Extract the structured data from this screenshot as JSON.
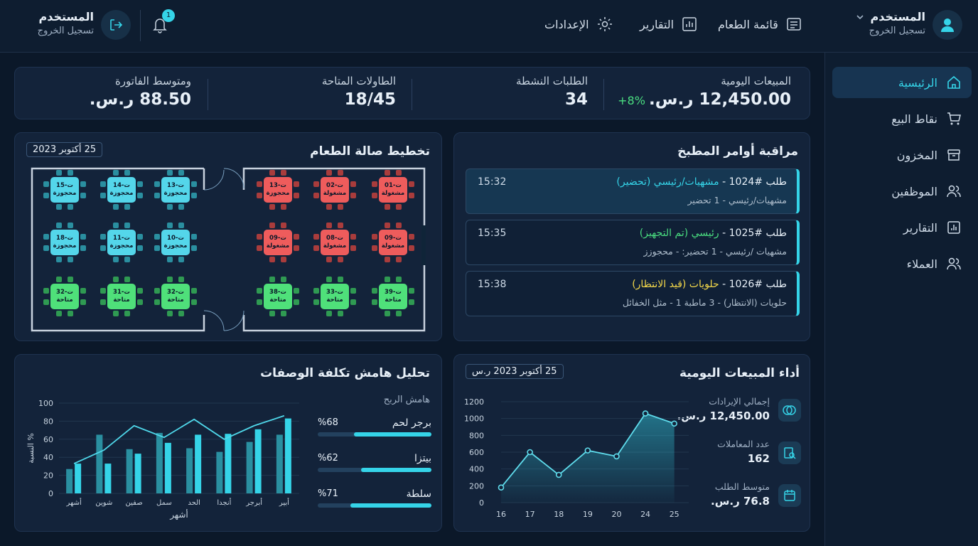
{
  "topbar": {
    "user_name": "المستخدم",
    "user_logout": "تسجيل الخروج",
    "menu_item": "قائمة الطعام",
    "reports_item": "التقارير",
    "settings_item": "الإعدادات",
    "notif_count": "1",
    "left_user_name": "المستخدم",
    "left_user_logout": "تسجيل الخروج"
  },
  "sidebar": {
    "items": [
      {
        "label": "الرئيسية",
        "icon": "home-icon"
      },
      {
        "label": "نقاط البيع",
        "icon": "cart-icon"
      },
      {
        "label": "المخزون",
        "icon": "box-icon"
      },
      {
        "label": "الموظفين",
        "icon": "users-icon"
      },
      {
        "label": "التقارير",
        "icon": "chart-icon"
      },
      {
        "label": "العملاء",
        "icon": "customers-icon"
      }
    ]
  },
  "stats": {
    "daily_sales_label": "المبيعات اليومية",
    "daily_sales_value": "12,450.00 ر.س.",
    "daily_sales_change": "+8%",
    "active_orders_label": "الطلبات النشطة",
    "active_orders_value": "34",
    "tables_label": "الطاولات المتاحة",
    "tables_value": "18/45",
    "avg_bill_label": "ومتوسط الفاتورة",
    "avg_bill_value": "88.50 ر.س."
  },
  "kitchen": {
    "title": "مراقبة أوامر المطبخ",
    "orders": [
      {
        "num": "طلب #1024 -",
        "status": "مشهيات/رئيسي (تحضير)",
        "detail": "مشهيات/رئيسي - 1 تحضير",
        "time": "15:32"
      },
      {
        "num": "طلب #1025 -",
        "status": "رئيسي (تم التجهيز)",
        "detail": "مشهيات /رئيسي - 1 تحضير: - محجوزز",
        "time": "15:35"
      },
      {
        "num": "طلب #1026 -",
        "status": "حلويات (قيد الانتظار)",
        "detail": "حلويات (الانتظار) - 3 ماطبة 1 - مثل الخفائل",
        "time": "15:38"
      }
    ]
  },
  "floor": {
    "title": "تخطيط صالة الطعام",
    "date": "25 أكتوبر 2023",
    "tables": [
      {
        "id": "ت-15",
        "status": "محجوزة",
        "color": "blue"
      },
      {
        "id": "ت-14",
        "status": "محجوزة",
        "color": "blue"
      },
      {
        "id": "ت-13",
        "status": "محجوزة",
        "color": "blue"
      },
      {
        "id": "ت-13",
        "status": "محجوزة",
        "color": "red"
      },
      {
        "id": "ت-02",
        "status": "مشغولة",
        "color": "red"
      },
      {
        "id": "ت-01",
        "status": "مشغولة",
        "color": "red"
      },
      {
        "id": "ت-18",
        "status": "محجوزة",
        "color": "blue"
      },
      {
        "id": "ت-11",
        "status": "محجوزة",
        "color": "blue"
      },
      {
        "id": "ت-10",
        "status": "محجوزة",
        "color": "blue"
      },
      {
        "id": "ت-09",
        "status": "مشغولة",
        "color": "red"
      },
      {
        "id": "ت-08",
        "status": "مشغولة",
        "color": "red"
      },
      {
        "id": "ت-09",
        "status": "مشغولة",
        "color": "red"
      },
      {
        "id": "ت-32",
        "status": "متاحة",
        "color": "grn"
      },
      {
        "id": "ت-31",
        "status": "متاحة",
        "color": "grn"
      },
      {
        "id": "ت-32",
        "status": "متاحة",
        "color": "grn"
      },
      {
        "id": "ت-38",
        "status": "متاحة",
        "color": "grn"
      },
      {
        "id": "ت-33",
        "status": "متاحة",
        "color": "grn"
      },
      {
        "id": "ت-39",
        "status": "متاحة",
        "color": "grn"
      }
    ]
  },
  "margin": {
    "title": "تحليل هامش تكلفة الوصفات",
    "profit_label": "هامش الربح",
    "items": [
      {
        "name": "برجر لحم",
        "pct": "%68",
        "value": 0.68
      },
      {
        "name": "بيتزا",
        "pct": "%62",
        "value": 0.62
      },
      {
        "name": "سلطة",
        "pct": "%71",
        "value": 0.71
      }
    ]
  },
  "sales": {
    "title": "أداء المبيعات اليومية",
    "date": "25 أكتوبر 2023 ر.س",
    "revenue_label": "إجمالي الإيرادات",
    "revenue_value": "12,450.00 ر.س.",
    "tx_label": "عدد المعاملات",
    "tx_value": "162",
    "avg_label": "متوسط الطلب",
    "avg_value": "76.8 ر.س."
  },
  "chart_data": [
    {
      "type": "bar",
      "ylabel": "النسبة %",
      "xlabel": "أشهر",
      "ylim": [
        0,
        100
      ],
      "yticks": [
        "0",
        "20",
        "40",
        "60",
        "80",
        "100"
      ],
      "categories": [
        "أشهر",
        "شوين",
        "صفين",
        "سمل",
        "الحد",
        "أنجدا",
        "أبرجر",
        "أبير"
      ],
      "series": [
        {
          "values": [
            27,
            65,
            49,
            67,
            50,
            46,
            57,
            65
          ]
        },
        {
          "values": [
            33,
            33,
            44,
            56,
            65,
            66,
            71,
            83
          ]
        }
      ],
      "line": [
        33,
        48,
        75,
        62,
        82,
        60,
        75,
        86
      ]
    },
    {
      "type": "area",
      "x": [
        "16",
        "17",
        "18",
        "19",
        "20",
        "24",
        "25"
      ],
      "values": [
        180,
        600,
        330,
        620,
        550,
        1060,
        940
      ],
      "ylim": [
        0,
        1200
      ],
      "yticks": [
        "0",
        "200",
        "400",
        "600",
        "800",
        "1000",
        "1200"
      ]
    }
  ]
}
